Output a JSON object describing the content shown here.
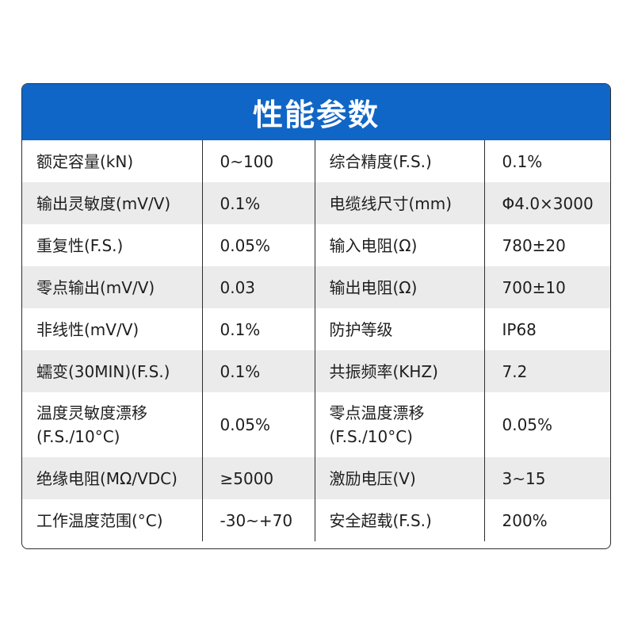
{
  "title": "性能参数",
  "colors": {
    "header_bg": "#1066c6",
    "stripe_bg": "#ebebeb",
    "border": "#2d2d2d"
  },
  "rows": [
    {
      "label1": "额定容量(kN)",
      "value1": "0~100",
      "label2": "综合精度(F.S.)",
      "value2": "0.1%"
    },
    {
      "label1": "输出灵敏度(mV/V)",
      "value1": "0.1%",
      "label2": "电缆线尺寸(mm)",
      "value2": "Φ4.0×3000"
    },
    {
      "label1": "重复性(F.S.)",
      "value1": "0.05%",
      "label2": "输入电阻(Ω)",
      "value2": "780±20"
    },
    {
      "label1": "零点输出(mV/V)",
      "value1": "0.03",
      "label2": "输出电阻(Ω)",
      "value2": "700±10"
    },
    {
      "label1": "非线性(mV/V)",
      "value1": "0.1%",
      "label2": "防护等级",
      "value2": "IP68"
    },
    {
      "label1": "蠕变(30MIN)(F.S.)",
      "value1": "0.1%",
      "label2": "共振频率(KHZ)",
      "value2": "7.2"
    },
    {
      "label1_line1": "温度灵敏度漂移",
      "label1_line2": "(F.S./10°C)",
      "value1": "0.05%",
      "label2_line1": "零点温度漂移",
      "label2_line2": "(F.S./10°C)",
      "value2": "0.05%"
    },
    {
      "label1": "绝缘电阻(MΩ/VDC)",
      "value1": "≥5000",
      "label2": "激励电压(V)",
      "value2": "3~15"
    },
    {
      "label1": "工作温度范围(°C)",
      "value1": "-30~+70",
      "label2": "安全超载(F.S.)",
      "value2": "200%"
    }
  ]
}
